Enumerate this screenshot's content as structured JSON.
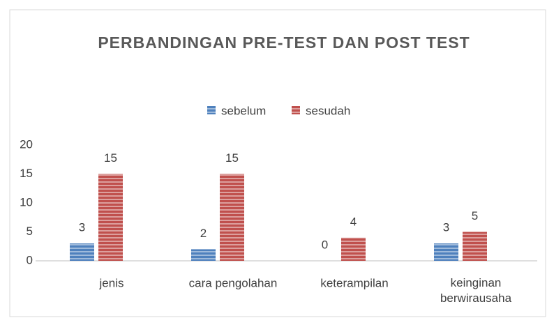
{
  "chart_data": {
    "type": "bar",
    "title": "PERBANDINGAN  PRE-TEST  DAN  POST TEST",
    "categories": [
      "jenis",
      "cara pengolahan",
      "keterampilan",
      "keinginan berwirausaha"
    ],
    "series": [
      {
        "name": "sebelum",
        "color": "#4f81bd",
        "values": [
          3,
          2,
          0,
          3
        ]
      },
      {
        "name": "sesudah",
        "color": "#c0504d",
        "values": [
          15,
          15,
          4,
          5
        ]
      }
    ],
    "ylim": [
      0,
      20
    ],
    "yticks": [
      0,
      5,
      10,
      15,
      20
    ],
    "grid": false,
    "legend": "top"
  }
}
